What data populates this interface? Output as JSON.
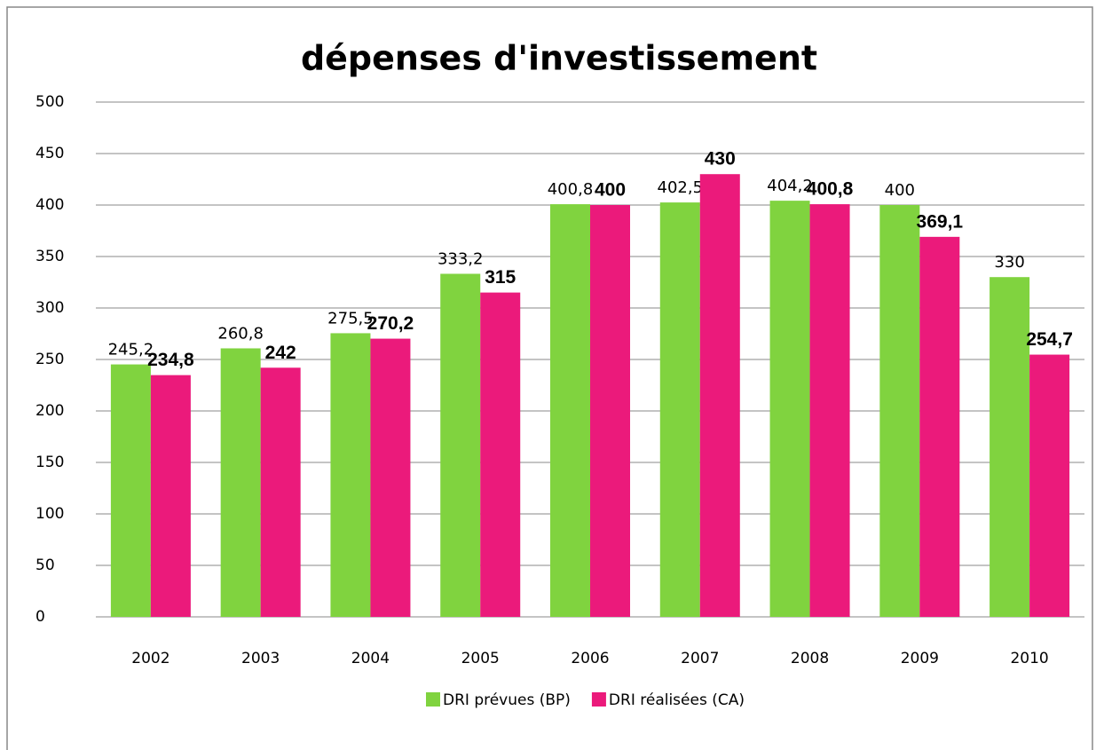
{
  "chart_data": {
    "type": "bar",
    "title": "dépenses d'investissement",
    "categories": [
      "2002",
      "2003",
      "2004",
      "2005",
      "2006",
      "2007",
      "2008",
      "2009",
      "2010"
    ],
    "series": [
      {
        "name": "DRI prévues (BP)",
        "color": "#80d33f",
        "values": [
          245.2,
          260.8,
          275.5,
          333.2,
          400.8,
          402.5,
          404.2,
          400,
          330
        ],
        "value_labels": [
          "245,2",
          "260,8",
          "275,5",
          "333,2",
          "400,8",
          "402,5",
          "404,2",
          "400",
          "330"
        ]
      },
      {
        "name": "DRI réalisées (CA)",
        "color": "#eb1a7b",
        "values": [
          234.8,
          242,
          270.2,
          315,
          400,
          430,
          400.8,
          369.1,
          254.7
        ],
        "value_labels": [
          "234,8",
          "242",
          "270,2",
          "315",
          "400",
          "430",
          "400,8",
          "369,1",
          "254,7"
        ]
      }
    ],
    "ylim": [
      0,
      500
    ],
    "yticks": [
      0,
      50,
      100,
      150,
      200,
      250,
      300,
      350,
      400,
      450,
      500
    ],
    "grid": true,
    "legend": "bottom"
  }
}
